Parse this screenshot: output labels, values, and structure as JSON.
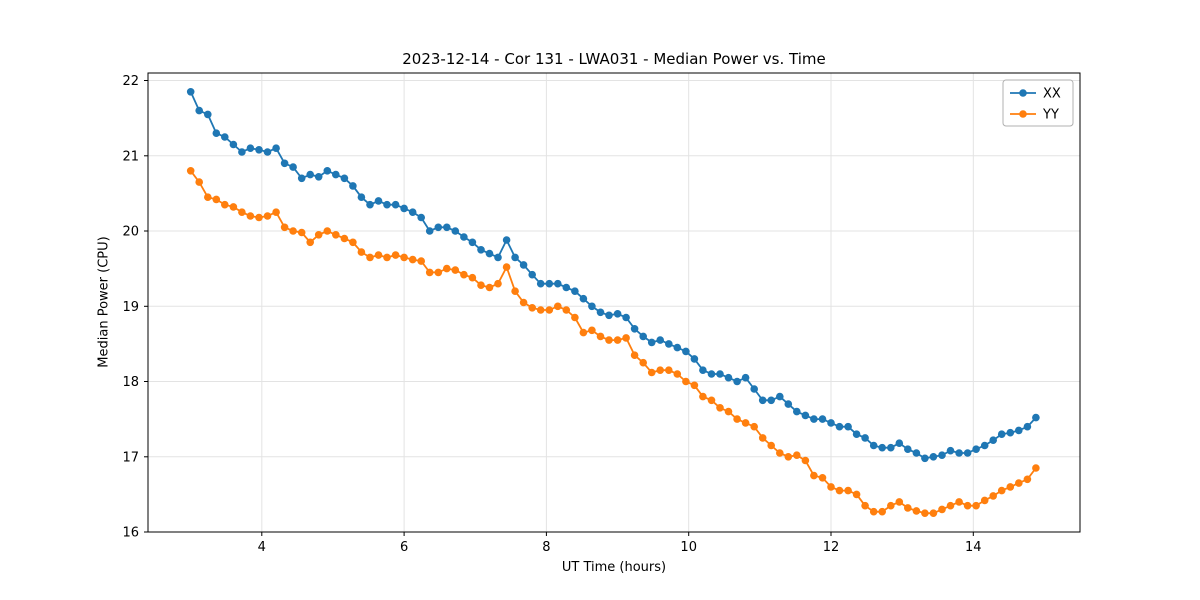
{
  "chart_data": {
    "type": "line",
    "title": "2023-12-14 - Cor 131 - LWA031 - Median Power vs. Time",
    "xlabel": "UT Time (hours)",
    "ylabel": "Median Power (CPU)",
    "xlim": [
      2.4,
      15.5
    ],
    "ylim": [
      16,
      22.1
    ],
    "xticks": [
      4,
      6,
      8,
      10,
      12,
      14
    ],
    "yticks": [
      16,
      17,
      18,
      19,
      20,
      21,
      22
    ],
    "grid": true,
    "legend_position": "upper right",
    "marker": "circle",
    "x": [
      3.0,
      3.12,
      3.24,
      3.36,
      3.48,
      3.6,
      3.72,
      3.84,
      3.96,
      4.08,
      4.2,
      4.32,
      4.44,
      4.56,
      4.68,
      4.8,
      4.92,
      5.04,
      5.16,
      5.28,
      5.4,
      5.52,
      5.64,
      5.76,
      5.88,
      6.0,
      6.12,
      6.24,
      6.36,
      6.48,
      6.6,
      6.72,
      6.84,
      6.96,
      7.08,
      7.2,
      7.32,
      7.44,
      7.56,
      7.68,
      7.8,
      7.92,
      8.04,
      8.16,
      8.28,
      8.4,
      8.52,
      8.64,
      8.76,
      8.88,
      9.0,
      9.12,
      9.24,
      9.36,
      9.48,
      9.6,
      9.72,
      9.84,
      9.96,
      10.08,
      10.2,
      10.32,
      10.44,
      10.56,
      10.68,
      10.8,
      10.92,
      11.04,
      11.16,
      11.28,
      11.4,
      11.52,
      11.64,
      11.76,
      11.88,
      12.0,
      12.12,
      12.24,
      12.36,
      12.48,
      12.6,
      12.72,
      12.84,
      12.96,
      13.08,
      13.2,
      13.32,
      13.44,
      13.56,
      13.68,
      13.8,
      13.92,
      14.04,
      14.16,
      14.28,
      14.4,
      14.52,
      14.64,
      14.76,
      14.88
    ],
    "series": [
      {
        "name": "XX",
        "color": "#1f77b4",
        "values": [
          21.85,
          21.6,
          21.55,
          21.3,
          21.25,
          21.15,
          21.05,
          21.1,
          21.08,
          21.05,
          21.1,
          20.9,
          20.85,
          20.7,
          20.75,
          20.72,
          20.8,
          20.75,
          20.7,
          20.6,
          20.45,
          20.35,
          20.4,
          20.35,
          20.35,
          20.3,
          20.25,
          20.18,
          20.0,
          20.05,
          20.05,
          20.0,
          19.92,
          19.85,
          19.75,
          19.7,
          19.65,
          19.88,
          19.65,
          19.55,
          19.42,
          19.3,
          19.3,
          19.3,
          19.25,
          19.2,
          19.1,
          19.0,
          18.92,
          18.88,
          18.9,
          18.85,
          18.7,
          18.6,
          18.52,
          18.55,
          18.5,
          18.45,
          18.4,
          18.3,
          18.15,
          18.1,
          18.1,
          18.05,
          18.0,
          18.05,
          17.9,
          17.75,
          17.75,
          17.8,
          17.7,
          17.6,
          17.55,
          17.5,
          17.5,
          17.45,
          17.4,
          17.4,
          17.3,
          17.25,
          17.15,
          17.12,
          17.12,
          17.18,
          17.1,
          17.05,
          16.98,
          17.0,
          17.02,
          17.08,
          17.05,
          17.05,
          17.1,
          17.15,
          17.22,
          17.3,
          17.32,
          17.35,
          17.4,
          17.52
        ]
      },
      {
        "name": "YY",
        "color": "#ff7f0e",
        "values": [
          20.8,
          20.65,
          20.45,
          20.42,
          20.35,
          20.32,
          20.25,
          20.2,
          20.18,
          20.2,
          20.25,
          20.05,
          20.0,
          19.98,
          19.85,
          19.95,
          20.0,
          19.95,
          19.9,
          19.85,
          19.72,
          19.65,
          19.68,
          19.65,
          19.68,
          19.65,
          19.62,
          19.6,
          19.45,
          19.45,
          19.5,
          19.48,
          19.42,
          19.38,
          19.28,
          19.25,
          19.3,
          19.52,
          19.2,
          19.05,
          18.98,
          18.95,
          18.95,
          19.0,
          18.95,
          18.85,
          18.65,
          18.68,
          18.6,
          18.55,
          18.55,
          18.58,
          18.35,
          18.25,
          18.12,
          18.15,
          18.15,
          18.1,
          18.0,
          17.95,
          17.8,
          17.75,
          17.65,
          17.6,
          17.5,
          17.45,
          17.4,
          17.25,
          17.15,
          17.05,
          17.0,
          17.02,
          16.95,
          16.75,
          16.72,
          16.6,
          16.55,
          16.55,
          16.5,
          16.35,
          16.27,
          16.27,
          16.35,
          16.4,
          16.32,
          16.28,
          16.25,
          16.25,
          16.3,
          16.35,
          16.4,
          16.35,
          16.35,
          16.42,
          16.48,
          16.55,
          16.6,
          16.65,
          16.7,
          16.85
        ]
      }
    ]
  }
}
